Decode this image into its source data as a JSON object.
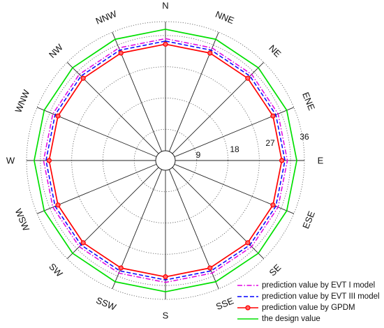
{
  "chart_data": {
    "type": "radar",
    "categories": [
      "N",
      "NNE",
      "NE",
      "ENE",
      "E",
      "ESE",
      "SE",
      "SSE",
      "S",
      "SSW",
      "SW",
      "WSW",
      "W",
      "WNW",
      "NW",
      "NNW"
    ],
    "radial_ticks": [
      "9",
      "18",
      "27",
      "36"
    ],
    "rlim": [
      0,
      40
    ],
    "inner_hole": true,
    "grid": "dotted circles every 9 units, solid spokes at every direction",
    "series": [
      {
        "name": "prediction value by EVT I model",
        "color": "#e000e0",
        "style": "dash-dot",
        "marker": "none",
        "values": [
          35.1,
          35.1,
          35.1,
          35.1,
          35.1,
          35.1,
          35.1,
          35.1,
          35.1,
          35.1,
          35.1,
          35.1,
          35.1,
          35.1,
          35.1,
          35.1
        ]
      },
      {
        "name": "prediction value by EVT III model",
        "color": "#0000ff",
        "style": "dashed",
        "marker": "none",
        "values": [
          34.4,
          34.4,
          34.4,
          34.4,
          34.4,
          34.4,
          34.4,
          34.4,
          34.4,
          34.4,
          34.4,
          34.4,
          34.4,
          34.4,
          34.4,
          34.4
        ]
      },
      {
        "name": "prediction value by GPDM",
        "color": "#ff0000",
        "style": "solid",
        "marker": "circle",
        "values": [
          33.5,
          33.5,
          33.5,
          33.5,
          33.5,
          33.5,
          33.5,
          33.5,
          33.5,
          33.5,
          33.5,
          33.5,
          33.5,
          33.5,
          33.5,
          33.5
        ]
      },
      {
        "name": "the design value",
        "color": "#00e000",
        "style": "solid",
        "marker": "none",
        "values": [
          37.8,
          37.8,
          37.8,
          37.8,
          37.8,
          37.8,
          37.8,
          37.8,
          37.8,
          37.8,
          37.8,
          37.8,
          37.8,
          37.8,
          37.8,
          37.8
        ]
      }
    ],
    "legend_position": "bottom-right"
  }
}
